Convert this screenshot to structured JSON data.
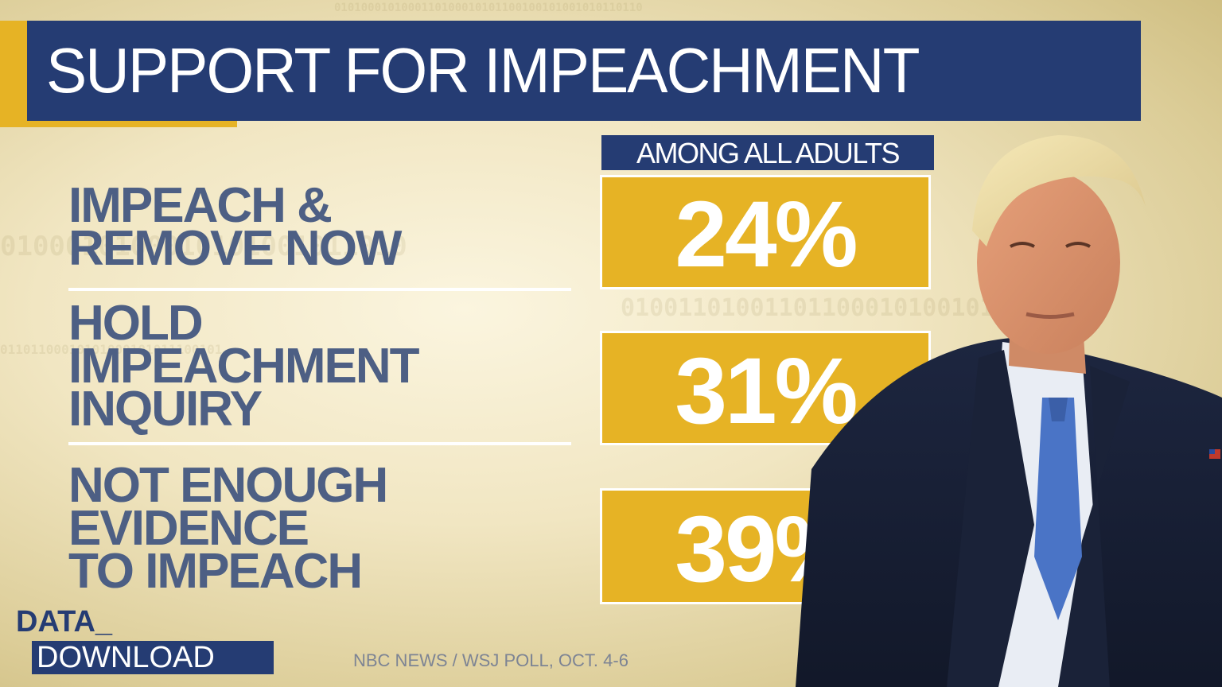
{
  "chart_data": {
    "type": "table",
    "title": "SUPPORT FOR IMPEACHMENT",
    "subtitle": "AMONG ALL ADULTS",
    "categories": [
      [
        "IMPEACH &",
        "REMOVE NOW"
      ],
      [
        "HOLD",
        "IMPEACHMENT",
        "INQUIRY"
      ],
      [
        "NOT ENOUGH",
        "EVIDENCE",
        "TO IMPEACH"
      ]
    ],
    "values": [
      24,
      31,
      39
    ],
    "value_labels": [
      "24%",
      "31%",
      "39%"
    ],
    "unit": "%"
  },
  "branding": {
    "line1": "DATA_",
    "line2": "DOWNLOAD"
  },
  "source": "NBC NEWS / WSJ POLL, OCT. 4-6",
  "photo": "portrait-photo",
  "colors": {
    "navy": "#253c73",
    "gold": "#e6b325",
    "label_text": "#4d5f84",
    "background": "#f1e6c2"
  }
}
